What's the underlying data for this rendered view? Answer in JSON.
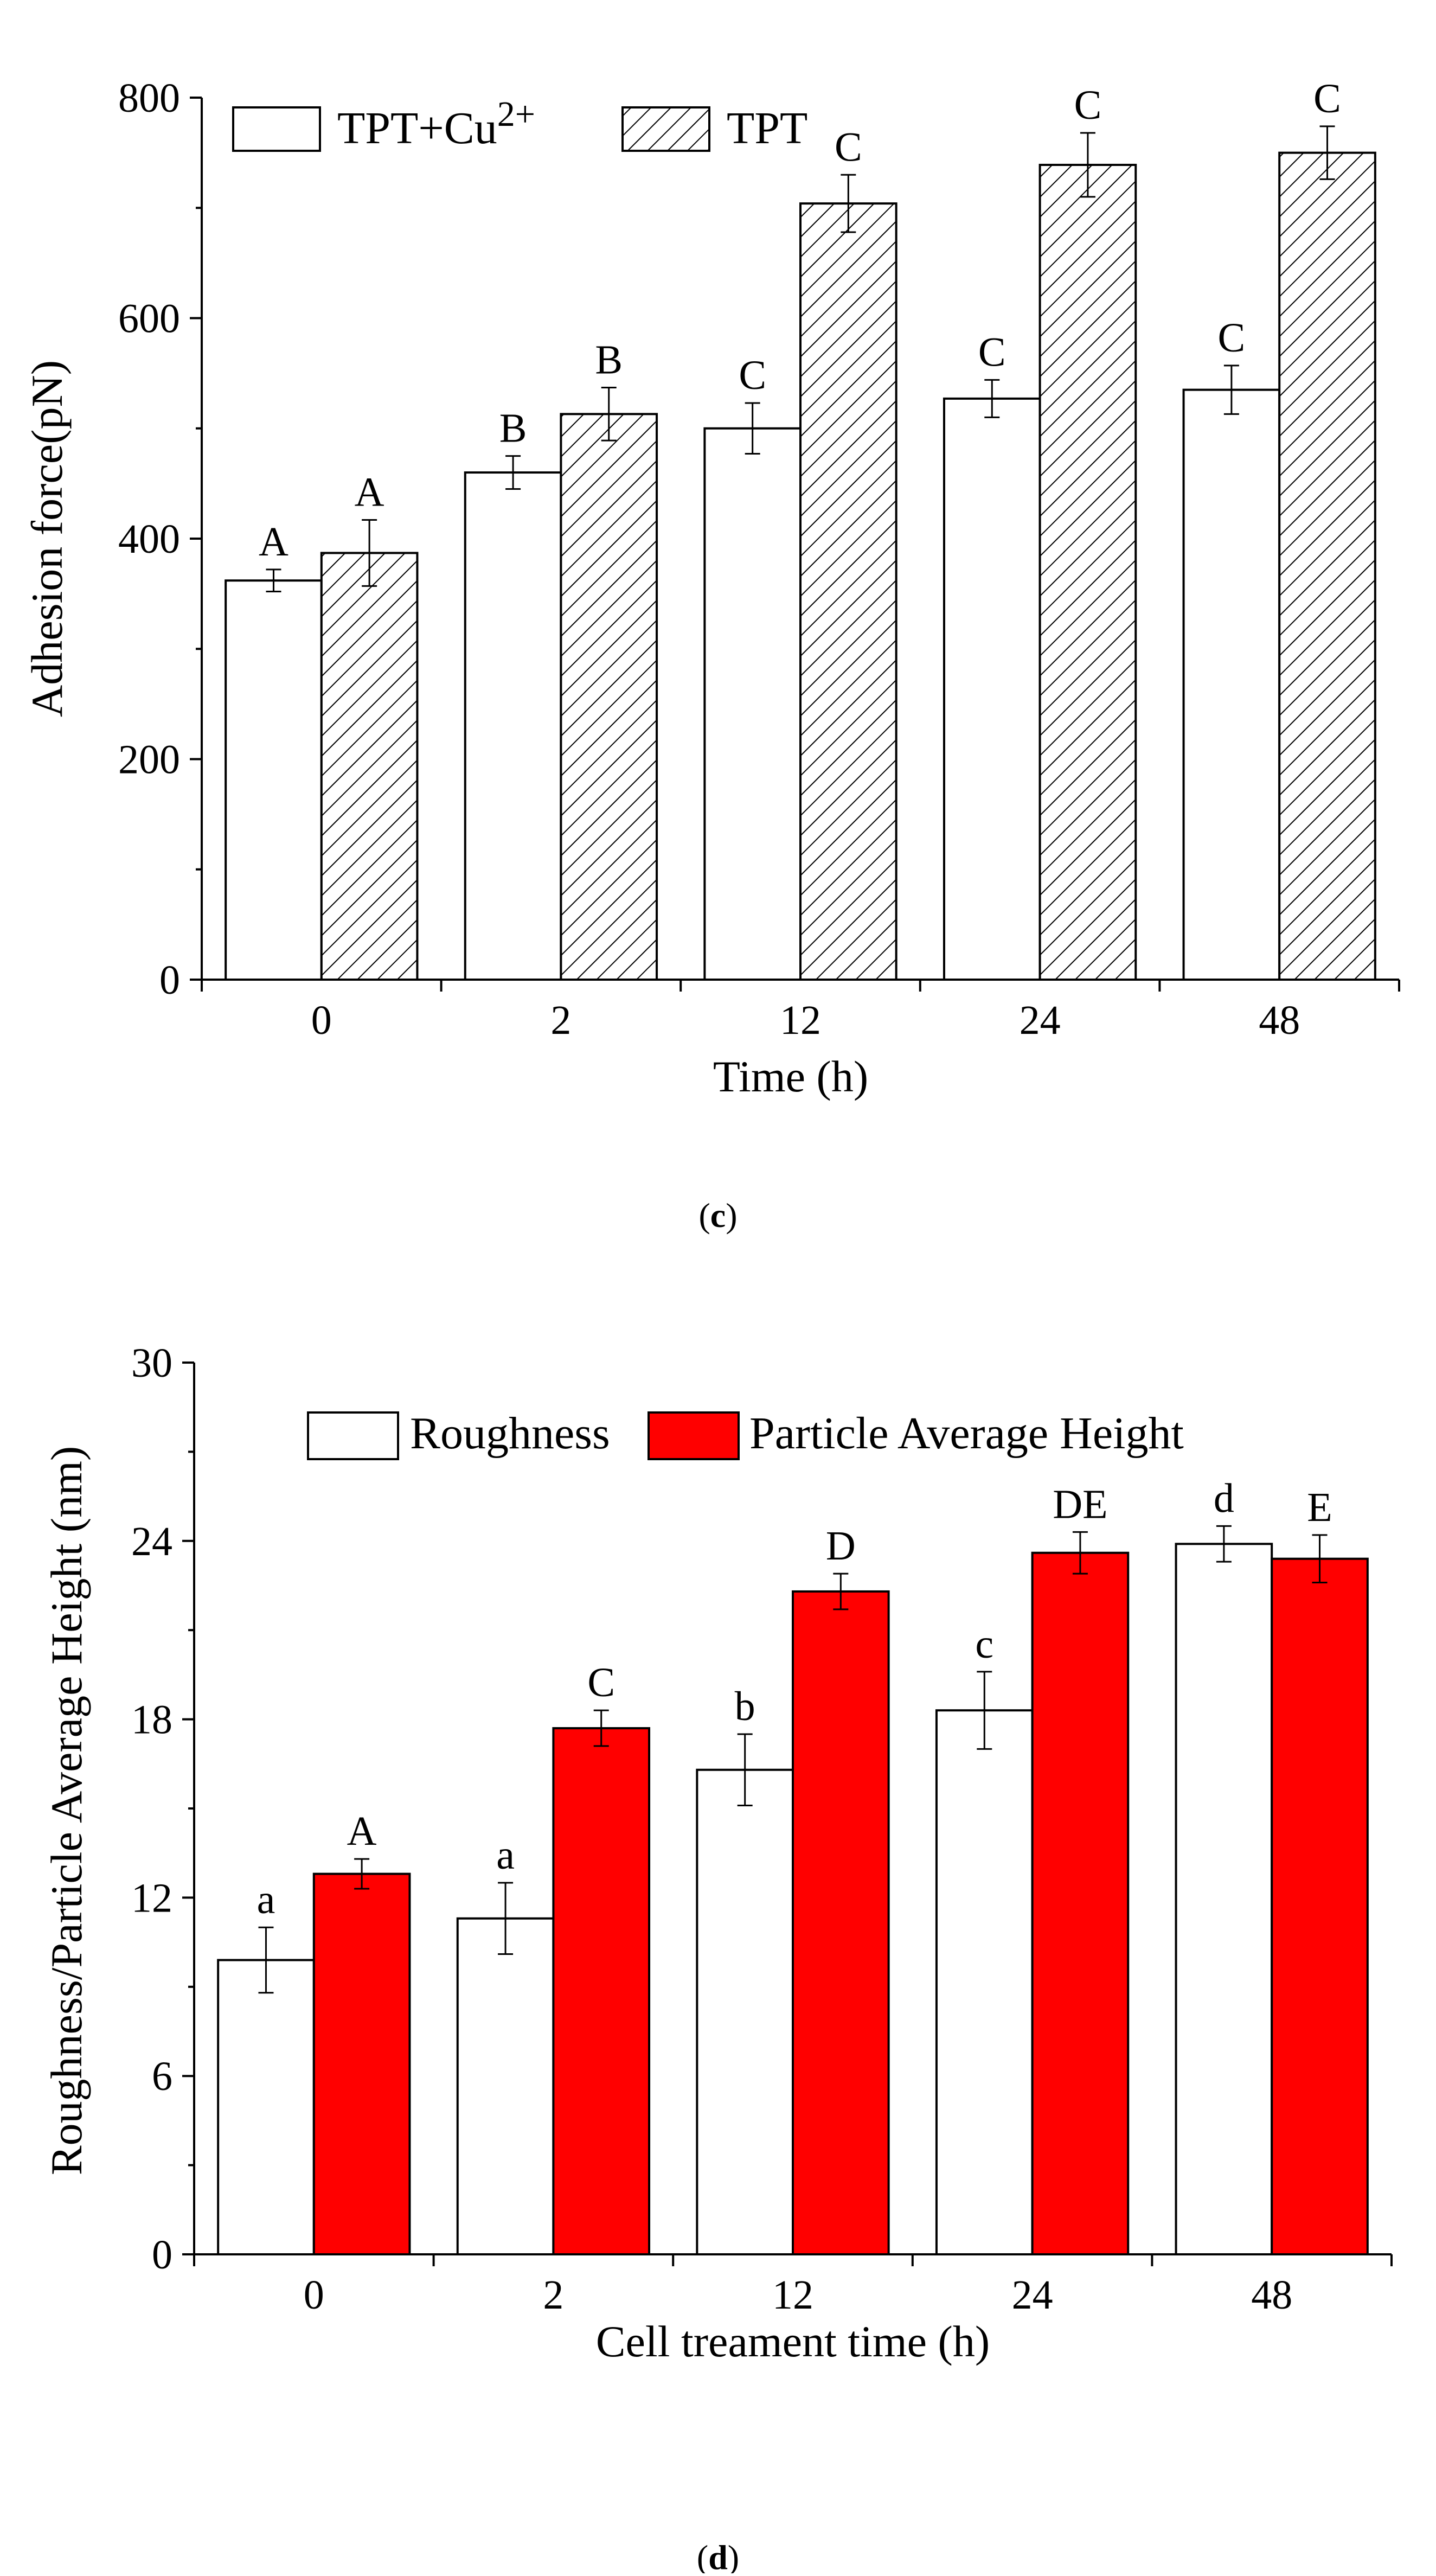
{
  "chart_data": [
    {
      "type": "bar",
      "panel_label": "c",
      "xlabel": "Time (h)",
      "ylabel": "Adhesion force(pN)",
      "categories": [
        "0",
        "2",
        "12",
        "24",
        "48"
      ],
      "ylim": [
        0,
        800
      ],
      "yticks": [
        "0",
        "200",
        "400",
        "600",
        "800"
      ],
      "legend_position": "top-left",
      "series": [
        {
          "name": "TPT+Cu2+",
          "legend_base": "TPT+Cu",
          "legend_sup": "2+",
          "fill": "white",
          "values": [
            362,
            460,
            500,
            527,
            535
          ],
          "errors": [
            10,
            15,
            23,
            17,
            22
          ],
          "letters": [
            "A",
            "B",
            "C",
            "C",
            "C"
          ]
        },
        {
          "name": "TPT",
          "legend_base": "TPT",
          "legend_sup": "",
          "fill": "hatch",
          "values": [
            387,
            513,
            704,
            739,
            750
          ],
          "errors": [
            30,
            24,
            26,
            29,
            24
          ],
          "letters": [
            "A",
            "B",
            "C",
            "C",
            "C"
          ]
        }
      ]
    },
    {
      "type": "bar",
      "panel_label": "d",
      "xlabel": "Cell treament time (h)",
      "ylabel": "Roughness/Particle Average Height (nm)",
      "categories": [
        "0",
        "2",
        "12",
        "24",
        "48"
      ],
      "ylim": [
        0,
        30
      ],
      "yticks": [
        "0",
        "6",
        "12",
        "18",
        "24",
        "30"
      ],
      "legend_position": "top",
      "series": [
        {
          "name": "Roughness",
          "legend_base": "Roughness",
          "legend_sup": "",
          "fill": "white",
          "values": [
            9.9,
            11.3,
            16.3,
            18.3,
            23.9
          ],
          "errors": [
            1.1,
            1.2,
            1.2,
            1.3,
            0.6
          ],
          "letters": [
            "a",
            "a",
            "b",
            "c",
            "d"
          ]
        },
        {
          "name": "Particle Average Height",
          "legend_base": "Particle Average Height",
          "legend_sup": "",
          "fill": "red",
          "values": [
            12.8,
            17.7,
            22.3,
            23.6,
            23.4
          ],
          "errors": [
            0.5,
            0.6,
            0.6,
            0.7,
            0.8
          ],
          "letters": [
            "A",
            "C",
            "D",
            "DE",
            "E"
          ]
        }
      ]
    }
  ],
  "colors": {
    "red_bar": "#ff0000",
    "stroke": "#000000",
    "background": "#ffffff"
  }
}
